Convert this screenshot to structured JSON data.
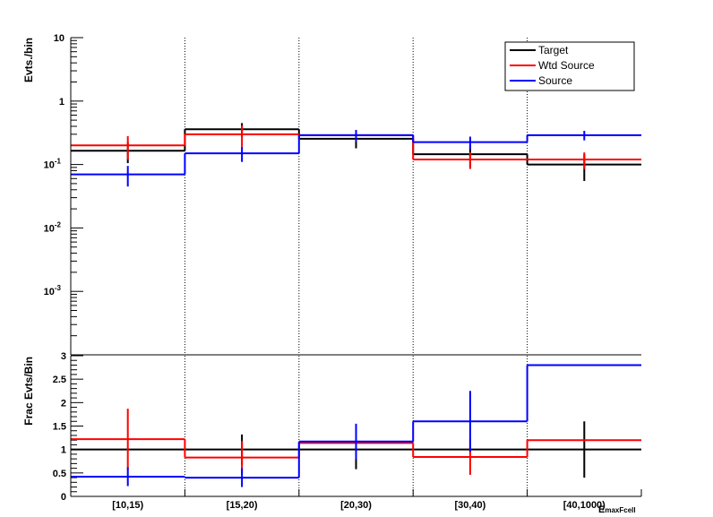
{
  "chart_data": [
    {
      "type": "line",
      "panel": "top",
      "ylabel": "Evts./bin",
      "yscale": "log",
      "ylim": [
        0.0001,
        10
      ],
      "ytick_labels": [
        {
          "v": 10,
          "label": "10"
        },
        {
          "v": 1,
          "label": "1"
        },
        {
          "v": 0.1,
          "base": "10",
          "exp": "-1"
        },
        {
          "v": 0.01,
          "base": "10",
          "exp": "-2"
        },
        {
          "v": 0.001,
          "base": "10",
          "exp": "-3"
        }
      ],
      "categories": [
        "[10,15)",
        "[15,20)",
        "[20,30)",
        "[30,40)",
        "[40,1000)"
      ],
      "series": [
        {
          "name": "Target",
          "color": "#000000",
          "values": [
            0.165,
            0.36,
            0.255,
            0.145,
            0.1
          ],
          "errors": [
            0.06,
            0.09,
            0.075,
            0.055,
            0.045
          ]
        },
        {
          "name": "Wtd Source",
          "color": "#ff0000",
          "values": [
            0.2,
            0.3,
            0.29,
            0.12,
            0.12
          ],
          "errors": [
            0.08,
            0.11,
            0.06,
            0.035,
            0.035
          ]
        },
        {
          "name": "Source",
          "color": "#0000ff",
          "values": [
            0.07,
            0.15,
            0.29,
            0.225,
            0.29
          ],
          "errors": [
            0.025,
            0.04,
            0.06,
            0.05,
            0.05
          ]
        }
      ],
      "legend": {
        "position": "top-right",
        "entries": [
          "Target",
          "Wtd Source",
          "Source"
        ]
      }
    },
    {
      "type": "line",
      "panel": "bottom",
      "ylabel": "Frac Evts/Bin",
      "ylim": [
        0,
        3
      ],
      "ytick_labels": [
        "0",
        "0.5",
        "1",
        "1.5",
        "2",
        "2.5",
        "3"
      ],
      "categories": [
        "[10,15)",
        "[15,20)",
        "[20,30)",
        "[30,40)",
        "[40,1000)"
      ],
      "xlabel_partial": "E",
      "xlabel_sub": "maxFcell",
      "series": [
        {
          "name": "Target",
          "color": "#000000",
          "values": [
            1,
            1,
            1,
            1,
            1
          ],
          "errors": [
            0,
            0.32,
            0.42,
            0,
            0.6
          ]
        },
        {
          "name": "Wtd Source",
          "color": "#ff0000",
          "values": [
            1.22,
            0.83,
            1.14,
            0.84,
            1.2
          ],
          "errors": [
            0.65,
            0.35,
            0,
            0.38,
            0
          ]
        },
        {
          "name": "Source",
          "color": "#0000ff",
          "values": [
            0.42,
            0.4,
            1.17,
            1.6,
            2.8
          ],
          "errors": [
            0.2,
            0.2,
            0.38,
            0.65,
            0
          ]
        }
      ]
    }
  ]
}
